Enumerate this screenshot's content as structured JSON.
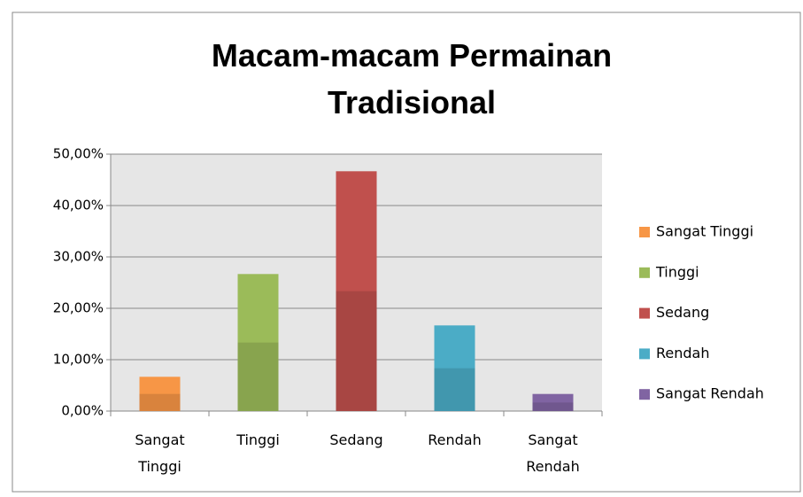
{
  "chart_data": {
    "type": "bar",
    "title": "Macam-macam Permainan Tradisional",
    "categories": [
      "Sangat Tinggi",
      "Tinggi",
      "Sedang",
      "Rendah",
      "Sangat Rendah"
    ],
    "values": [
      6.67,
      26.67,
      46.67,
      16.67,
      3.33
    ],
    "colors": [
      "#f79646",
      "#9bbb59",
      "#c0504d",
      "#4bacc6",
      "#8064a2"
    ],
    "ylim": [
      0,
      50
    ],
    "yticks": [
      {
        "value": 0,
        "label": "0,00%"
      },
      {
        "value": 10,
        "label": "10,00%"
      },
      {
        "value": 20,
        "label": "20,00%"
      },
      {
        "value": 30,
        "label": "30,00%"
      },
      {
        "value": 40,
        "label": "40,00%"
      },
      {
        "value": 50,
        "label": "50,00%"
      }
    ],
    "grid": true,
    "legend": "right"
  }
}
